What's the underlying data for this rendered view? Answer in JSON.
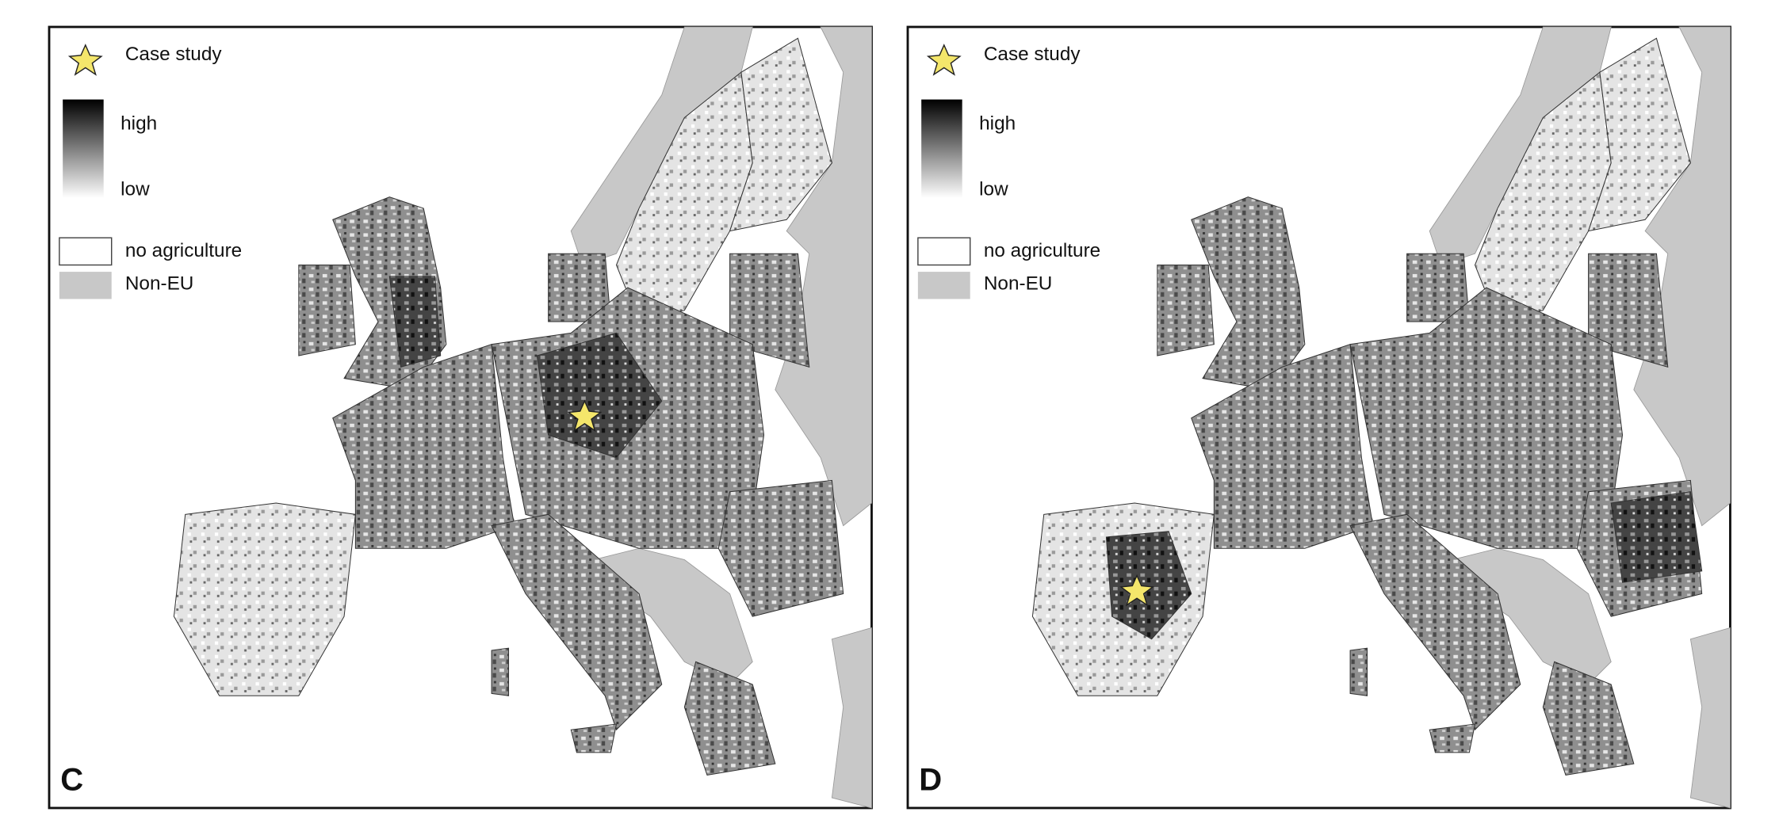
{
  "panels": [
    {
      "label": "C",
      "legend": {
        "case_study": "Case study",
        "high": "high",
        "low": "low",
        "no_agriculture": "no agriculture",
        "non_eu": "Non-EU"
      }
    },
    {
      "label": "D",
      "legend": {
        "case_study": "Case study",
        "high": "high",
        "low": "low",
        "no_agriculture": "no agriculture",
        "non_eu": "Non-EU"
      }
    }
  ]
}
